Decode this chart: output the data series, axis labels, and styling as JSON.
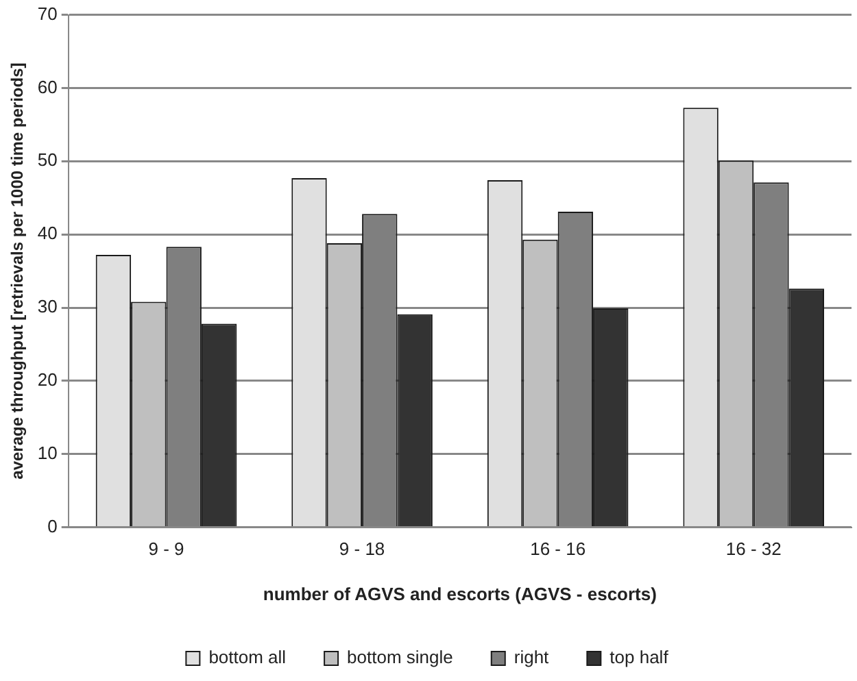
{
  "chart_data": {
    "type": "bar",
    "xlabel": "number of AGVS and escorts (AGVS - escorts)",
    "ylabel": "average throughput [retrievals per 1000 time periods]",
    "categories": [
      "9 - 9",
      "9 - 18",
      "16 - 16",
      "16 - 32"
    ],
    "series": [
      {
        "name": "bottom all",
        "color": "#e0e0e0",
        "values": [
          37.2,
          47.7,
          47.4,
          57.3
        ]
      },
      {
        "name": "bottom single",
        "color": "#bfbfbf",
        "values": [
          30.8,
          38.8,
          39.3,
          50.1
        ]
      },
      {
        "name": "right",
        "color": "#7f7f7f",
        "values": [
          38.3,
          42.8,
          43.1,
          47.1
        ]
      },
      {
        "name": "top half",
        "color": "#333333",
        "values": [
          27.8,
          29.1,
          29.9,
          32.6
        ]
      }
    ],
    "ylim": [
      0,
      70
    ],
    "yticks": [
      0,
      10,
      20,
      30,
      40,
      50,
      60,
      70
    ],
    "grid": "y",
    "legend": "bottom"
  }
}
